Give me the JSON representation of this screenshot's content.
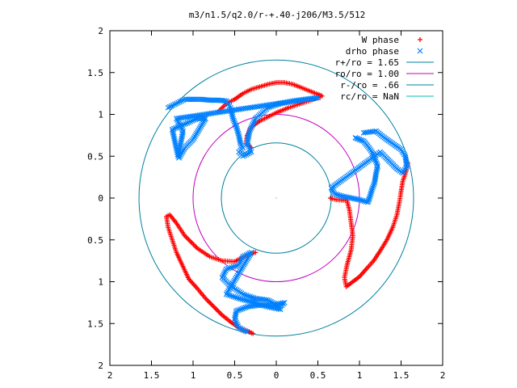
{
  "chart_data": {
    "type": "scatter",
    "title": "m3/n1.5/q2.0/r-+.40-j206/M3.5/512",
    "xlabel": "",
    "ylabel": "",
    "xlim": [
      -2,
      2
    ],
    "ylim": [
      -2,
      2
    ],
    "x_tick_values": [
      -2,
      -1.5,
      -1,
      -0.5,
      0,
      0.5,
      1,
      1.5,
      2
    ],
    "x_tick_labels": [
      "2",
      "1.5",
      "1",
      "0.5",
      "0",
      "0.5",
      "1",
      "1.5",
      "2"
    ],
    "y_tick_values": [
      2,
      1.5,
      1,
      0.5,
      0,
      -0.5,
      -1,
      -1.5,
      -2
    ],
    "y_tick_labels": [
      "2",
      "1.5",
      "1",
      "0.5",
      "0",
      "0.5",
      "1",
      "1.5",
      "2"
    ],
    "grid": false,
    "legend_position": "top-right",
    "series": [
      {
        "name": "W phase",
        "marker": "plus",
        "color": "#ff0000",
        "arms": [
          [
            [
              -0.7,
              1.03
            ],
            [
              -0.65,
              1.08
            ],
            [
              -0.6,
              1.13
            ],
            [
              -0.5,
              1.18
            ],
            [
              -0.4,
              1.25
            ],
            [
              -0.3,
              1.3
            ],
            [
              -0.2,
              1.33
            ],
            [
              -0.1,
              1.36
            ],
            [
              0.0,
              1.38
            ],
            [
              0.1,
              1.38
            ],
            [
              0.2,
              1.36
            ],
            [
              0.3,
              1.32
            ],
            [
              0.4,
              1.28
            ],
            [
              0.5,
              1.24
            ],
            [
              0.55,
              1.22
            ],
            [
              0.45,
              1.18
            ],
            [
              0.3,
              1.13
            ],
            [
              0.15,
              1.08
            ],
            [
              0.0,
              1.02
            ],
            [
              -0.1,
              0.97
            ],
            [
              -0.2,
              0.92
            ],
            [
              -0.3,
              0.85
            ],
            [
              -0.35,
              0.75
            ],
            [
              -0.36,
              0.65
            ],
            [
              -0.3,
              0.6
            ]
          ],
          [
            [
              1.58,
              0.42
            ],
            [
              1.56,
              0.32
            ],
            [
              1.52,
              0.2
            ],
            [
              1.5,
              0.08
            ],
            [
              1.48,
              -0.05
            ],
            [
              1.45,
              -0.2
            ],
            [
              1.4,
              -0.35
            ],
            [
              1.33,
              -0.5
            ],
            [
              1.25,
              -0.63
            ],
            [
              1.17,
              -0.75
            ],
            [
              1.08,
              -0.85
            ],
            [
              1.0,
              -0.94
            ],
            [
              0.92,
              -1.0
            ],
            [
              0.84,
              -1.06
            ],
            [
              0.82,
              -0.95
            ],
            [
              0.85,
              -0.8
            ],
            [
              0.9,
              -0.62
            ],
            [
              0.92,
              -0.45
            ],
            [
              0.9,
              -0.3
            ],
            [
              0.88,
              -0.15
            ],
            [
              0.85,
              -0.03
            ],
            [
              0.72,
              -0.02
            ],
            [
              0.65,
              0.0
            ]
          ],
          [
            [
              -0.28,
              -1.62
            ],
            [
              -0.35,
              -1.59
            ],
            [
              -0.45,
              -1.55
            ],
            [
              -0.55,
              -1.48
            ],
            [
              -0.65,
              -1.4
            ],
            [
              -0.75,
              -1.3
            ],
            [
              -0.85,
              -1.2
            ],
            [
              -0.95,
              -1.08
            ],
            [
              -1.05,
              -0.97
            ],
            [
              -1.13,
              -0.8
            ],
            [
              -1.2,
              -0.65
            ],
            [
              -1.25,
              -0.5
            ],
            [
              -1.3,
              -0.35
            ],
            [
              -1.32,
              -0.22
            ],
            [
              -1.28,
              -0.2
            ],
            [
              -1.2,
              -0.3
            ],
            [
              -1.1,
              -0.45
            ],
            [
              -0.95,
              -0.6
            ],
            [
              -0.8,
              -0.7
            ],
            [
              -0.65,
              -0.75
            ],
            [
              -0.5,
              -0.76
            ],
            [
              -0.35,
              -0.68
            ],
            [
              -0.25,
              -0.65
            ]
          ]
        ]
      },
      {
        "name": "drho phase",
        "marker": "cross",
        "color": "#0080ff",
        "arms": [
          [
            [
              -1.3,
              1.08
            ],
            [
              -1.2,
              1.13
            ],
            [
              -1.1,
              1.18
            ],
            [
              -1.0,
              1.18
            ],
            [
              -0.9,
              1.18
            ],
            [
              -0.8,
              1.17
            ],
            [
              -0.7,
              1.17
            ],
            [
              -0.6,
              1.16
            ],
            [
              -0.55,
              1.08
            ],
            [
              -0.52,
              0.95
            ],
            [
              -0.48,
              0.85
            ],
            [
              -0.45,
              0.75
            ],
            [
              -0.43,
              0.65
            ],
            [
              -0.4,
              0.6
            ],
            [
              -0.45,
              0.55
            ],
            [
              -0.4,
              0.5
            ],
            [
              -0.3,
              0.55
            ],
            [
              -0.35,
              0.65
            ],
            [
              -0.32,
              0.8
            ],
            [
              -0.25,
              0.95
            ],
            [
              -0.1,
              1.08
            ],
            [
              0.05,
              1.13
            ],
            [
              0.2,
              1.16
            ],
            [
              0.35,
              1.18
            ],
            [
              0.5,
              1.2
            ],
            [
              -1.2,
              0.95
            ],
            [
              -1.12,
              0.8
            ],
            [
              -1.15,
              0.65
            ],
            [
              -1.18,
              0.5
            ],
            [
              -1.25,
              0.82
            ],
            [
              -0.95,
              0.95
            ],
            [
              -0.85,
              0.95
            ],
            [
              -1.0,
              0.7
            ],
            [
              -1.1,
              0.6
            ],
            [
              -1.17,
              0.48
            ]
          ],
          [
            [
              0.95,
              0.72
            ],
            [
              1.0,
              0.7
            ],
            [
              1.05,
              0.68
            ],
            [
              1.1,
              0.62
            ],
            [
              1.15,
              0.55
            ],
            [
              1.18,
              0.48
            ],
            [
              1.22,
              0.38
            ],
            [
              1.2,
              0.3
            ],
            [
              1.18,
              0.18
            ],
            [
              1.15,
              0.1
            ],
            [
              1.12,
              0.0
            ],
            [
              1.1,
              -0.05
            ],
            [
              1.0,
              -0.02
            ],
            [
              0.9,
              0.0
            ],
            [
              0.8,
              0.02
            ],
            [
              0.7,
              0.05
            ],
            [
              0.66,
              0.12
            ],
            [
              1.25,
              0.55
            ],
            [
              1.35,
              0.45
            ],
            [
              1.45,
              0.35
            ],
            [
              1.52,
              0.3
            ],
            [
              1.57,
              0.38
            ],
            [
              1.55,
              0.5
            ],
            [
              1.5,
              0.58
            ],
            [
              1.4,
              0.65
            ],
            [
              1.3,
              0.72
            ],
            [
              1.2,
              0.8
            ],
            [
              1.05,
              0.78
            ]
          ],
          [
            [
              -0.35,
              -1.6
            ],
            [
              -0.45,
              -1.55
            ],
            [
              -0.5,
              -1.45
            ],
            [
              -0.48,
              -1.35
            ],
            [
              -0.35,
              -1.3
            ],
            [
              -0.2,
              -1.28
            ],
            [
              -0.05,
              -1.28
            ],
            [
              0.1,
              -1.25
            ],
            [
              0.05,
              -1.3
            ],
            [
              -0.1,
              -1.22
            ],
            [
              -0.25,
              -1.2
            ],
            [
              -0.4,
              -1.15
            ],
            [
              -0.55,
              -1.05
            ],
            [
              -0.65,
              -0.95
            ],
            [
              -0.6,
              -0.85
            ],
            [
              -0.45,
              -0.8
            ],
            [
              -0.4,
              -0.7
            ],
            [
              -0.3,
              -0.65
            ],
            [
              -0.6,
              -1.15
            ],
            [
              -0.45,
              -1.2
            ],
            [
              -0.3,
              -1.24
            ],
            [
              -0.1,
              -1.3
            ],
            [
              0.05,
              -1.33
            ]
          ]
        ]
      },
      {
        "name": "r+/ro = 1.65",
        "type": "circle",
        "radius": 1.65,
        "color": "#0080a0"
      },
      {
        "name": "ro/ro = 1.00",
        "type": "circle",
        "radius": 1.0,
        "color": "#c000c0"
      },
      {
        "name": "r-/ro = .66",
        "type": "circle",
        "radius": 0.66,
        "color": "#0080a0"
      },
      {
        "name": "rc/ro = NaN",
        "type": "circle",
        "radius": null,
        "color": "#00c0c0"
      }
    ]
  }
}
